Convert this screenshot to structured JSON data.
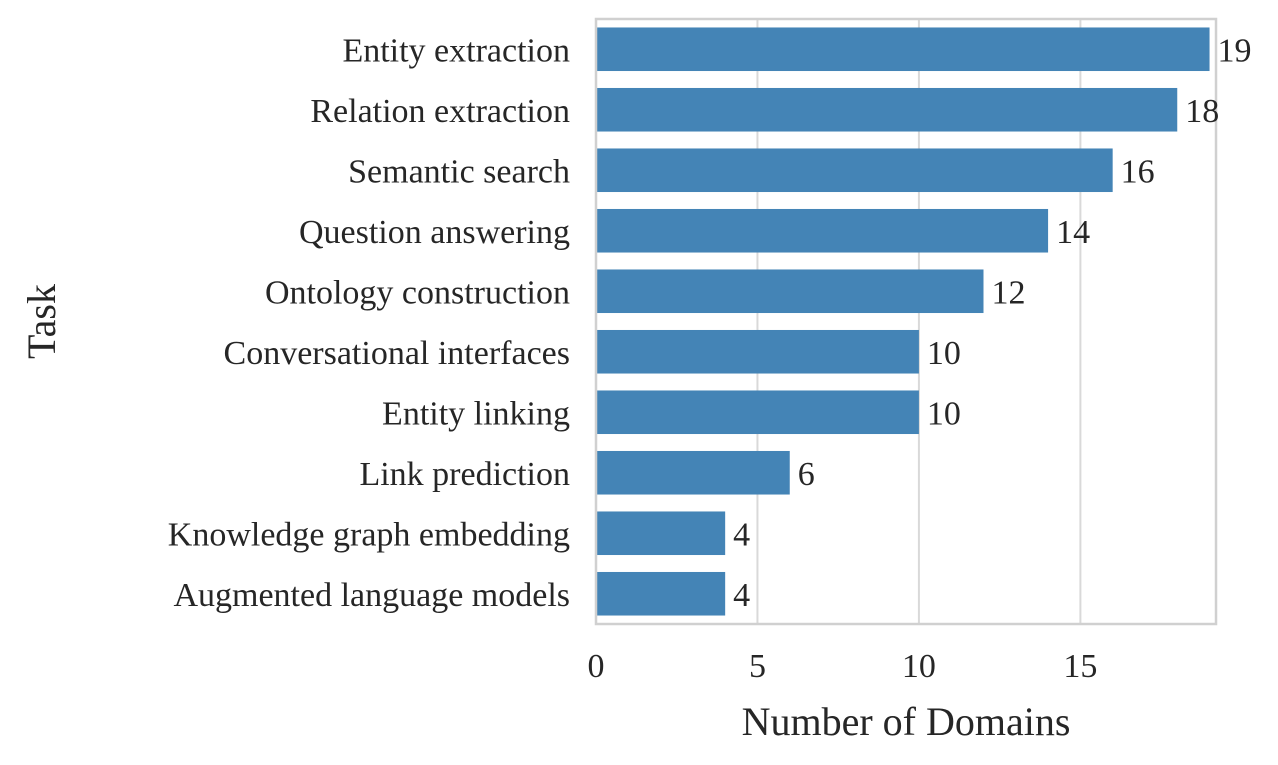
{
  "chart_data": {
    "type": "bar",
    "orientation": "horizontal",
    "categories": [
      "Entity extraction",
      "Relation extraction",
      "Semantic search",
      "Question answering",
      "Ontology construction",
      "Conversational interfaces",
      "Entity linking",
      "Link prediction",
      "Knowledge graph embedding",
      "Augmented language models"
    ],
    "values": [
      19,
      18,
      16,
      14,
      12,
      10,
      10,
      6,
      4,
      4
    ],
    "xlabel": "Number of Domains",
    "ylabel": "Task",
    "xlim": [
      0,
      19.2
    ],
    "xticks": [
      0,
      5,
      10,
      15
    ],
    "grid": "x",
    "bar_color": "#4484b6",
    "data_labels": true
  }
}
